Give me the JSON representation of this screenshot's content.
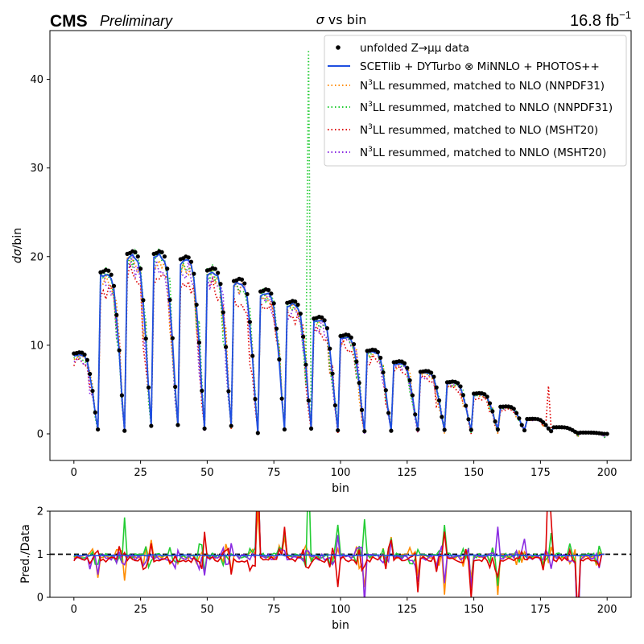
{
  "header": {
    "experiment": "CMS",
    "status": "Preliminary",
    "title_sigma": "σ",
    "title_rest": " vs bin",
    "lumi_value": "16.8 fb",
    "lumi_exp": "−1"
  },
  "colors": {
    "data": "#000000",
    "scetlib": "#1f4fe0",
    "nll_nlo_nnpdf": "#ff8c00",
    "nll_nnlo_nnpdf": "#22cc33",
    "nll_nlo_msht": "#dd0000",
    "nll_nnlo_msht": "#8a2be2",
    "ref_line": "#000000"
  },
  "chart_data": [
    {
      "type": "scatter",
      "panel": "main",
      "xlabel": "bin",
      "ylabel_italic": "dσ",
      "ylabel_rest": "/bin",
      "xlim": [
        -9,
        209
      ],
      "ylim": [
        -3,
        45.5
      ],
      "xticks": [
        0,
        25,
        50,
        75,
        100,
        125,
        150,
        175,
        200
      ],
      "yticks": [
        0,
        10,
        20,
        30,
        40
      ],
      "legend_position": "upper-right",
      "legend": [
        {
          "key": "data",
          "text": "unfolded Z→μμ data",
          "style": "marker"
        },
        {
          "key": "scetlib",
          "text": "SCETlib + DYTurbo ⊗ MiNNLO + PHOTOS++",
          "style": "solid"
        },
        {
          "key": "nll_nlo_nnpdf",
          "text_a": "N",
          "text_sup": "3",
          "text_b": "LL resummed, matched to NLO (NNPDF31)",
          "style": "dotted"
        },
        {
          "key": "nll_nnlo_nnpdf",
          "text_a": "N",
          "text_sup": "3",
          "text_b": "LL resummed, matched to NNLO (NNPDF31)",
          "style": "dotted"
        },
        {
          "key": "nll_nlo_msht",
          "text_a": "N",
          "text_sup": "3",
          "text_b": "LL resummed, matched to NLO (MSHT20)",
          "style": "dotted"
        },
        {
          "key": "nll_nnlo_msht",
          "text_a": "N",
          "text_sup": "3",
          "text_b": "LL resummed, matched to NNLO (MSHT20)",
          "style": "dotted"
        }
      ],
      "groups": {
        "start": [
          0,
          10,
          20,
          30,
          40,
          50,
          60,
          70,
          80,
          90,
          100,
          110,
          120,
          130,
          140,
          150,
          160,
          170,
          180,
          190
        ],
        "peak": [
          9.2,
          18.5,
          20.6,
          20.6,
          20.0,
          18.7,
          17.5,
          16.3,
          15.0,
          13.2,
          11.2,
          9.5,
          8.2,
          7.1,
          5.9,
          4.6,
          3.1,
          1.7,
          0.75,
          0.15
        ],
        "low": [
          0.5,
          0.35,
          0.9,
          1.0,
          0.6,
          0.9,
          0.1,
          0.5,
          0.6,
          0.4,
          0.3,
          0.35,
          0.5,
          0.45,
          0.45,
          0.5,
          0.4,
          0.3,
          0.1,
          0.0
        ]
      },
      "spikes": [
        {
          "key": "nll_nnlo_nnpdf",
          "x": 88,
          "y": 43.3
        },
        {
          "key": "nll_nlo_msht",
          "x": 178,
          "y": 5.4
        }
      ]
    },
    {
      "type": "line",
      "panel": "ratio",
      "xlabel": "bin",
      "ylabel": "Pred./Data",
      "xlim": [
        -9,
        209
      ],
      "ylim": [
        0,
        2
      ],
      "xticks": [
        0,
        25,
        50,
        75,
        100,
        125,
        150,
        175,
        200
      ],
      "yticks": [
        0,
        1,
        2
      ],
      "reference": 1.0
    }
  ]
}
